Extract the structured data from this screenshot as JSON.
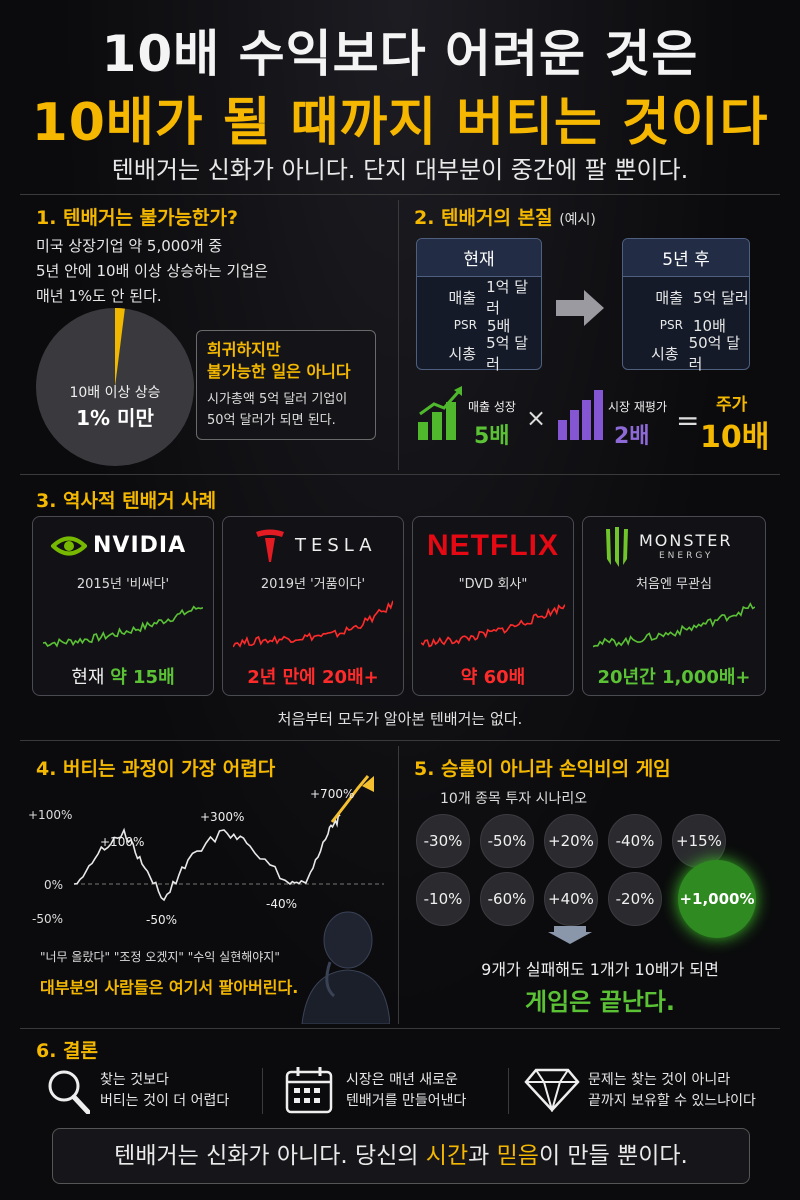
{
  "header": {
    "title_line1": "10배 수익보다 어려운 것은",
    "title_line2": "10배가 될 때까지 버티는 것이다",
    "subtitle": "텐배거는 신화가 아니다. 단지 대부분이 중간에 팔 뿐이다."
  },
  "section1": {
    "heading": "1. 텐배거는 불가능한가?",
    "lines": [
      "미국 상장기업 약 5,000개 중",
      "5년 안에 10배 이상 상승하는 기업은",
      "매년 1%도 안 된다."
    ],
    "pie": {
      "label": "10배 이상 상승",
      "value_label": "1% 미만",
      "fraction": 0.01
    },
    "callout_title_1": "희귀하지만",
    "callout_title_2": "불가능한 일은 아니다",
    "callout_body_1": "시가총액 5억 달러 기업이",
    "callout_body_2": "50억 달러가 되면 된다."
  },
  "section2": {
    "heading": "2. 텐배거의 본질",
    "heading_note": "(예시)",
    "now": {
      "title": "현재",
      "rows": [
        {
          "k": "매출",
          "v": "1억 달러"
        },
        {
          "k": "PSR",
          "v": "5배"
        },
        {
          "k": "시총",
          "v": "5억 달러"
        }
      ]
    },
    "later": {
      "title": "5년 후",
      "rows": [
        {
          "k": "매출",
          "v": "5억 달러"
        },
        {
          "k": "PSR",
          "v": "10배"
        },
        {
          "k": "시총",
          "v": "50억 달러"
        }
      ]
    },
    "growth_label": "매출 성장",
    "growth_value": "5배",
    "times": "×",
    "rerate_label": "시장 재평가",
    "rerate_value": "2배",
    "equals": "=",
    "price_label": "주가",
    "price_value": "10배",
    "colors": {
      "green": "#4fb82c",
      "purple": "#8456d4",
      "gold": "#f5b800"
    }
  },
  "section3": {
    "heading": "3. 역사적 텐배거 사례",
    "cards": [
      {
        "brand": "NVIDIA",
        "caption": "2015년 '비싸다'",
        "result_prefix": "현재",
        "result": "약 15배",
        "color": "#5bc236",
        "icon": "nvidia-eye-icon"
      },
      {
        "brand": "TESLA",
        "caption": "2019년 '거품이다'",
        "result_prefix": "2년 만에",
        "result": "20배+",
        "color": "#ff2b2b",
        "icon": "tesla-t-icon"
      },
      {
        "brand": "NETFLIX",
        "caption": "\"DVD 회사\"",
        "result_prefix": "",
        "result": "약 60배",
        "color": "#ff2b2b",
        "icon": ""
      },
      {
        "brand": "MONSTER",
        "brand_sub": "ENERGY",
        "caption": "처음엔 무관심",
        "result_prefix": "20년간",
        "result": "1,000배+",
        "color": "#5bc236",
        "icon": "monster-claw-icon"
      }
    ],
    "footnote": "처음부터 모두가 알아본 텐배거는 없다."
  },
  "section4": {
    "heading": "4. 버티는 과정이 가장 어렵다",
    "axis": [
      "+100%",
      "0%",
      "-50%"
    ],
    "labels": [
      "+100%",
      "+300%",
      "+700%",
      "-50%",
      "-40%"
    ],
    "quotes": "\"너무 올랐다\" \"조정 오겠지\" \"수익 실현해야지\"",
    "conclusion": "대부분의 사람들은 여기서 팔아버린다."
  },
  "section5": {
    "heading": "5. 승률이 아니라 손익비의 게임",
    "scenario": "10개 종목 투자 시나리오",
    "row1": [
      "-30%",
      "-50%",
      "+20%",
      "-40%",
      "+15%"
    ],
    "row2": [
      "-10%",
      "-60%",
      "+40%",
      "-20%"
    ],
    "winner": "+1,000%",
    "line1": "9개가 실패해도 1개가 10배가 되면",
    "line2": "게임은 끝난다."
  },
  "section6": {
    "heading": "6. 결론",
    "items": [
      {
        "icon": "magnifier-icon",
        "l1": "찾는 것보다",
        "l2": "버티는 것이 더 어렵다"
      },
      {
        "icon": "calendar-icon",
        "l1": "시장은 매년 새로운",
        "l2": "텐배거를 만들어낸다"
      },
      {
        "icon": "diamond-icon",
        "l1": "문제는 찾는 것이 아니라",
        "l2": "끝까지 보유할 수 있느냐이다"
      }
    ],
    "bar_pre": "텐배거는 신화가 아니다. 당신의 ",
    "bar_h1": "시간",
    "bar_mid": "과 ",
    "bar_h2": "믿음",
    "bar_post": "이 만들 뿐이다."
  }
}
